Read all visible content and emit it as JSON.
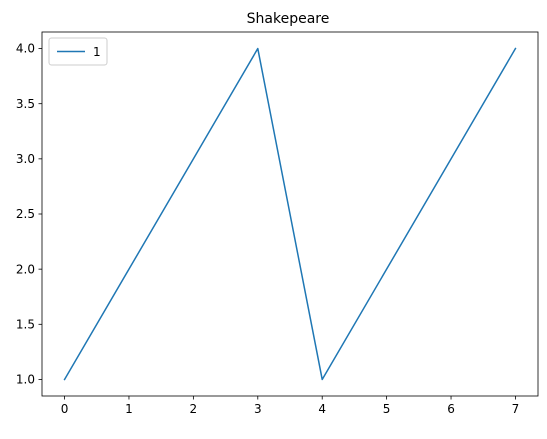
{
  "chart_data": {
    "type": "line",
    "title": "Shakepeare",
    "xlabel": "",
    "ylabel": "",
    "x": [
      0,
      1,
      2,
      3,
      4,
      5,
      6,
      7
    ],
    "series": [
      {
        "name": "1",
        "values": [
          1.0,
          2.0,
          3.0,
          4.0,
          1.0,
          2.0,
          3.0,
          4.0
        ],
        "color": "#1f77b4"
      }
    ],
    "xlim": [
      -0.35,
      7.35
    ],
    "ylim": [
      0.85,
      4.15
    ],
    "x_ticks": [
      0,
      1,
      2,
      3,
      4,
      5,
      6,
      7
    ],
    "x_tick_labels": [
      "0",
      "1",
      "2",
      "3",
      "4",
      "5",
      "6",
      "7"
    ],
    "y_ticks": [
      1.0,
      1.5,
      2.0,
      2.5,
      3.0,
      3.5,
      4.0
    ],
    "y_tick_labels": [
      "1.0",
      "1.5",
      "2.0",
      "2.5",
      "3.0",
      "3.5",
      "4.0"
    ],
    "grid": false,
    "legend_position": "upper left"
  }
}
